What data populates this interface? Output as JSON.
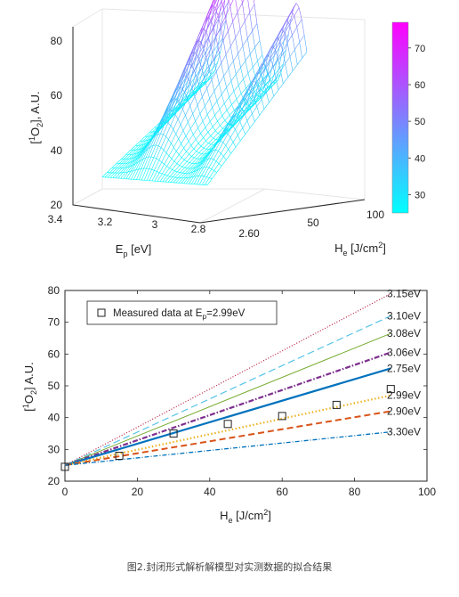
{
  "caption": "图2.封闭形式解析解模型对实测数据的拟合结果",
  "colors": {
    "cyan": "#00ffff",
    "magenta": "#ff00ff"
  },
  "chart_data": [
    {
      "type": "surface3d",
      "zlabel_main": "[",
      "zlabel_sup": "1",
      "zlabel_mid": "O",
      "zlabel_sub": "2",
      "zlabel_rest": "], A.U.",
      "xlabel_main": "E",
      "xlabel_sub": "p",
      "xlabel_rest": " [eV]",
      "ylabel_main": "H",
      "ylabel_sub": "e",
      "ylabel_rest": " [J/cm",
      "ylabel_sup": "2",
      "ylabel_end": "]",
      "z_ticks": [
        "20",
        "40",
        "60",
        "80"
      ],
      "x_ticks": [
        "3.4",
        "3.2",
        "3",
        "2.8",
        "2.60"
      ],
      "y_ticks": [
        "50",
        "100"
      ],
      "colorbar_ticks": [
        "30",
        "40",
        "50",
        "60",
        "70"
      ],
      "colorbar_range": [
        25,
        77
      ],
      "colormap": "cool",
      "grid": true,
      "surface_peaks": [
        {
          "E_p": 3.1,
          "H_e": 100,
          "z": 80
        },
        {
          "E_p": 2.68,
          "H_e": 100,
          "z": 57
        }
      ],
      "surface_floor": 25
    },
    {
      "type": "line",
      "xlabel_main": "H",
      "xlabel_sub": "e",
      "xlabel_rest": " [J/cm",
      "xlabel_sup": "2",
      "xlabel_end": "]",
      "ylabel_main": "[",
      "ylabel_sup": "1",
      "ylabel_mid": "O",
      "ylabel_sub": "2",
      "ylabel_rest": "] A.U.",
      "xlim": [
        0,
        100
      ],
      "ylim": [
        20,
        80
      ],
      "x_ticks": [
        "0",
        "20",
        "40",
        "60",
        "80",
        "100"
      ],
      "y_ticks": [
        "20",
        "30",
        "40",
        "50",
        "60",
        "70",
        "80"
      ],
      "legend": {
        "label_main": "Measured data at E",
        "label_sub": "p",
        "label_rest": "=2.99eV",
        "position": "top-left"
      },
      "grid": false,
      "series": [
        {
          "name": "3.15eV",
          "x": [
            0,
            90
          ],
          "y": [
            25,
            79
          ],
          "color": "#b5193a",
          "dash": "1,2",
          "width": 1.2
        },
        {
          "name": "3.10eV",
          "x": [
            0,
            90
          ],
          "y": [
            25,
            72
          ],
          "color": "#56c3e8",
          "dash": "8,4",
          "width": 1.2
        },
        {
          "name": "3.08eV",
          "x": [
            0,
            90
          ],
          "y": [
            25,
            66.5
          ],
          "color": "#77ac30",
          "dash": "",
          "width": 1.0
        },
        {
          "name": "3.06eV",
          "x": [
            0,
            90
          ],
          "y": [
            25,
            60.5
          ],
          "color": "#7e2f8e",
          "dash": "6,2,1.5,2",
          "width": 2.2
        },
        {
          "name": "2.75eV",
          "x": [
            0,
            90
          ],
          "y": [
            25,
            55.5
          ],
          "color": "#0072bd",
          "dash": "",
          "width": 2.2
        },
        {
          "name": "2.99eV",
          "x": [
            0,
            90
          ],
          "y": [
            25,
            47
          ],
          "color": "#edb120",
          "dash": "1.5,2.5",
          "width": 2.2
        },
        {
          "name": "2.90eV",
          "x": [
            0,
            90
          ],
          "y": [
            25,
            42
          ],
          "color": "#d95319",
          "dash": "7,4",
          "width": 2.0
        },
        {
          "name": "3.30eV",
          "x": [
            0,
            90
          ],
          "y": [
            25,
            35.5
          ],
          "color": "#0072bd",
          "dash": "5,2,1,2",
          "width": 1.3
        }
      ],
      "measured": {
        "x": [
          0,
          15,
          30,
          45,
          60,
          75,
          90
        ],
        "y": [
          24.5,
          28,
          35,
          38,
          40.5,
          44,
          49
        ]
      }
    }
  ]
}
